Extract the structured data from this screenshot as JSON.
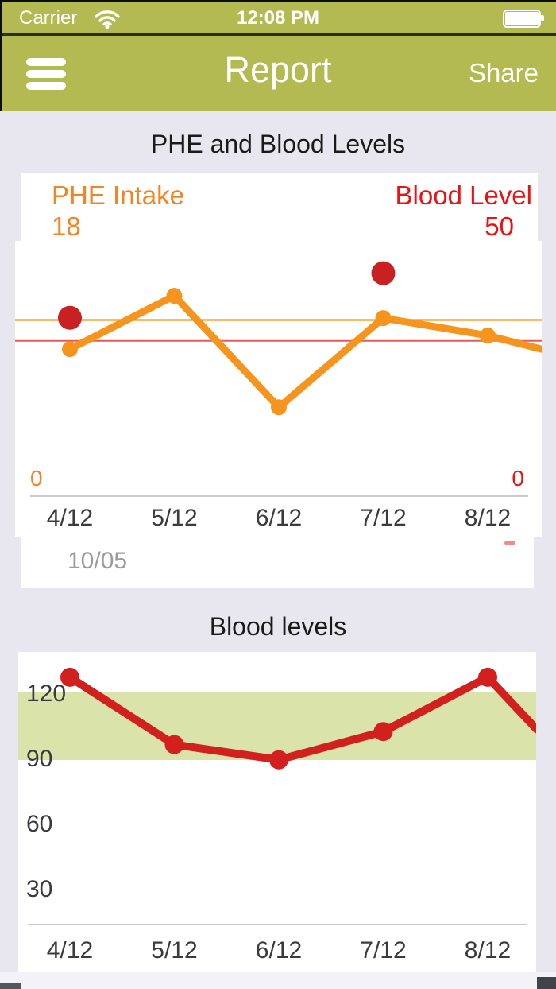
{
  "status_bar": {
    "carrier": "Carrier",
    "time": "12:08 PM",
    "wifi_icon": "wifi-icon",
    "battery_icon": "battery-full-icon"
  },
  "nav": {
    "title": "Report",
    "share": "Share",
    "menu_icon": "hamburger-menu-icon"
  },
  "colors": {
    "header_olive": "#b3ba52",
    "background_lavender": "#e8e6ef",
    "orange_line": "#f7941e",
    "orange_ref_line": "#f9a53b",
    "orange_text": "#f5831f",
    "red_text": "#ee1111",
    "red_dot": "#c92023",
    "red_ref_line": "#e45b5e",
    "blood_line": "#d2201f",
    "green_band": "#d9e3aa",
    "axis_line": "#cbcbcb",
    "tick_text": "#3b3b3b",
    "muted_text": "#9b9b9b"
  },
  "chart_data": [
    {
      "type": "line",
      "title": "PHE and Blood Levels",
      "categories": [
        "4/12",
        "5/12",
        "6/12",
        "7/12",
        "8/12"
      ],
      "footer_date": "10/05",
      "series": [
        {
          "name": "PHE Intake",
          "current_value": 18,
          "ylim": [
            0,
            26
          ],
          "axis_min_label": "0",
          "reference_line": 18,
          "points": [
            {
              "x": 0,
              "y": 15
            },
            {
              "x": 1,
              "y": 20.5
            },
            {
              "x": 2,
              "y": 9
            },
            {
              "x": 3,
              "y": 18.2
            },
            {
              "x": 4,
              "y": 16.4
            },
            {
              "x": 4.55,
              "y": 14.9
            }
          ]
        },
        {
          "name": "Blood Level",
          "current_value": 50,
          "ylim": [
            0,
            82
          ],
          "axis_min_label": "0",
          "reference_line": 50,
          "style": "scatter",
          "points": [
            {
              "x": 0,
              "y": 57.5
            },
            {
              "x": 3,
              "y": 72
            }
          ]
        }
      ]
    },
    {
      "type": "line",
      "title": "Blood levels",
      "categories": [
        "4/12",
        "5/12",
        "6/12",
        "7/12",
        "8/12"
      ],
      "yticks": [
        120,
        90,
        60,
        30
      ],
      "green_band": [
        90,
        120
      ],
      "ylim": [
        13,
        139
      ],
      "values": [
        127,
        96,
        89,
        102,
        127
      ],
      "extra_point": {
        "x": 4.47,
        "y": 103
      }
    }
  ]
}
